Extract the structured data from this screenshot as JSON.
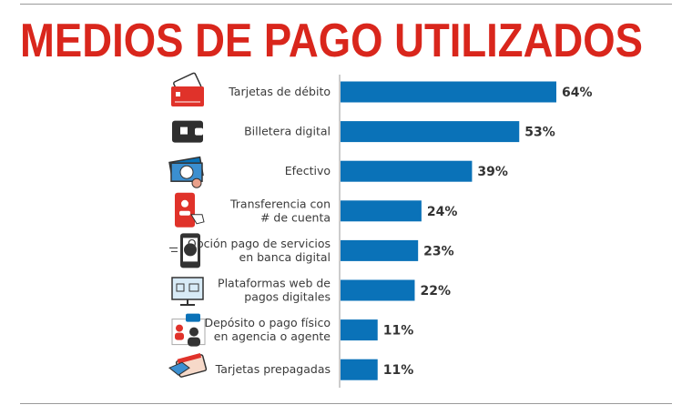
{
  "colors": {
    "title": "#d9261c",
    "bar": "#0a72b8",
    "axis": "#9a9a9a"
  },
  "chart_data": {
    "type": "bar",
    "orientation": "horizontal",
    "title": "MEDIOS DE PAGO UTILIZADOS",
    "unit": "%",
    "xlim": [
      0,
      64
    ],
    "grid": false,
    "categories": [
      {
        "lines": [
          "Tarjetas de débito"
        ],
        "icon": "debit-card-icon"
      },
      {
        "lines": [
          "Billetera digital"
        ],
        "icon": "digital-wallet-icon"
      },
      {
        "lines": [
          "Efectivo"
        ],
        "icon": "cash-icon"
      },
      {
        "lines": [
          "Transferencia con",
          "# de cuenta"
        ],
        "icon": "phone-transfer-icon"
      },
      {
        "lines": [
          "Opción pago de servicios",
          "en banca digital"
        ],
        "icon": "phone-payment-icon"
      },
      {
        "lines": [
          "Plataformas web de",
          "pagos digitales"
        ],
        "icon": "web-platform-icon"
      },
      {
        "lines": [
          "Depósito o pago físico",
          "en agencia o agente"
        ],
        "icon": "agent-icon"
      },
      {
        "lines": [
          "Tarjetas prepagadas"
        ],
        "icon": "prepaid-card-icon"
      }
    ],
    "values": [
      64,
      53,
      39,
      24,
      23,
      22,
      11,
      11
    ],
    "labels": [
      "64%",
      "53%",
      "39%",
      "24%",
      "23%",
      "22%",
      "11%",
      "11%"
    ]
  }
}
